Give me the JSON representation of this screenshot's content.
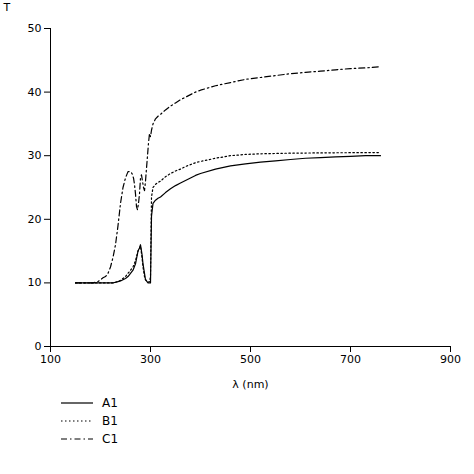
{
  "chart_data": {
    "type": "line",
    "xlabel": "λ (nm)",
    "ylabel": "T",
    "xlim": [
      100,
      900
    ],
    "ylim": [
      0,
      50
    ],
    "xticks": [
      100,
      300,
      500,
      700,
      900
    ],
    "yticks": [
      0,
      10,
      20,
      30,
      40,
      50
    ],
    "grid": false,
    "legend": "bottom",
    "series": [
      {
        "name": "A1",
        "color": "black",
        "line_style": "solid",
        "x": [
          150,
          155,
          160,
          165,
          170,
          175,
          180,
          185,
          190,
          195,
          200,
          205,
          210,
          215,
          220,
          225,
          230,
          235,
          240,
          245,
          250,
          255,
          260,
          265,
          270,
          275,
          278,
          280,
          283,
          285,
          288,
          290,
          293,
          295,
          298,
          300,
          302,
          305,
          310,
          315,
          320,
          330,
          340,
          350,
          360,
          370,
          380,
          390,
          400,
          430,
          460,
          490,
          520,
          550,
          580,
          610,
          640,
          670,
          700,
          730,
          760
        ],
        "values": [
          10.0,
          10.0,
          10.0,
          10.0,
          10.0,
          10.0,
          10.0,
          10.0,
          10.0,
          10.0,
          10.0,
          10.0,
          10.0,
          10.0,
          10.0,
          10.0,
          10.1,
          10.2,
          10.3,
          10.5,
          10.7,
          11.0,
          11.5,
          12.0,
          13.0,
          15.0,
          15.5,
          16.0,
          14.5,
          13.0,
          11.5,
          10.5,
          10.2,
          10.0,
          10.0,
          10.0,
          20.5,
          22.5,
          23.0,
          23.3,
          23.5,
          24.2,
          24.8,
          25.3,
          25.7,
          26.1,
          26.5,
          26.9,
          27.2,
          27.9,
          28.4,
          28.7,
          29.0,
          29.2,
          29.4,
          29.6,
          29.7,
          29.8,
          29.9,
          30.0,
          30.0
        ]
      },
      {
        "name": "B1",
        "color": "black",
        "line_style": "dotted",
        "x": [
          150,
          155,
          160,
          165,
          170,
          175,
          180,
          185,
          190,
          195,
          200,
          205,
          210,
          215,
          220,
          225,
          230,
          235,
          240,
          245,
          250,
          255,
          260,
          265,
          270,
          275,
          278,
          280,
          283,
          285,
          288,
          290,
          293,
          295,
          298,
          300,
          302,
          305,
          310,
          315,
          320,
          330,
          340,
          350,
          360,
          370,
          380,
          390,
          400,
          430,
          460,
          490,
          520,
          550,
          580,
          610,
          640,
          670,
          700,
          730,
          760
        ],
        "values": [
          10.0,
          10.0,
          10.0,
          10.0,
          10.0,
          10.0,
          10.0,
          10.0,
          10.0,
          10.0,
          10.0,
          10.0,
          10.0,
          10.0,
          10.0,
          10.0,
          10.1,
          10.2,
          10.4,
          10.7,
          11.0,
          11.5,
          12.0,
          12.5,
          13.5,
          15.0,
          15.5,
          15.8,
          14.0,
          12.5,
          11.0,
          10.5,
          10.3,
          10.1,
          10.2,
          11.0,
          23.5,
          25.0,
          25.5,
          25.8,
          26.0,
          26.7,
          27.2,
          27.6,
          27.9,
          28.3,
          28.6,
          28.9,
          29.1,
          29.6,
          30.0,
          30.2,
          30.3,
          30.35,
          30.4,
          30.42,
          30.44,
          30.46,
          30.47,
          30.48,
          30.5
        ]
      },
      {
        "name": "C1",
        "color": "black",
        "line_style": "dashdot",
        "x": [
          150,
          155,
          160,
          165,
          170,
          175,
          180,
          185,
          190,
          195,
          200,
          205,
          210,
          215,
          220,
          225,
          230,
          235,
          240,
          245,
          250,
          255,
          260,
          263,
          266,
          268,
          270,
          272,
          274,
          276,
          278,
          280,
          282,
          284,
          286,
          288,
          290,
          292,
          294,
          296,
          298,
          300,
          302,
          305,
          310,
          315,
          320,
          330,
          340,
          350,
          360,
          370,
          380,
          390,
          400,
          430,
          460,
          490,
          520,
          550,
          580,
          610,
          640,
          670,
          700,
          730,
          760
        ],
        "values": [
          10.0,
          10.0,
          10.0,
          10.0,
          10.0,
          10.0,
          10.0,
          10.0,
          10.1,
          10.2,
          10.5,
          10.8,
          11.0,
          11.5,
          12.5,
          14.0,
          16.0,
          19.0,
          22.5,
          25.0,
          26.5,
          27.5,
          27.5,
          27.2,
          26.5,
          25.5,
          24.0,
          22.0,
          21.5,
          22.5,
          24.0,
          26.5,
          27.0,
          26.0,
          25.0,
          24.5,
          26.0,
          28.0,
          30.0,
          32.0,
          33.5,
          33.0,
          34.0,
          35.0,
          35.8,
          36.2,
          36.5,
          37.2,
          37.8,
          38.3,
          38.8,
          39.2,
          39.6,
          40.0,
          40.3,
          41.0,
          41.5,
          42.0,
          42.3,
          42.6,
          42.9,
          43.1,
          43.3,
          43.5,
          43.7,
          43.8,
          44.0
        ]
      }
    ]
  }
}
